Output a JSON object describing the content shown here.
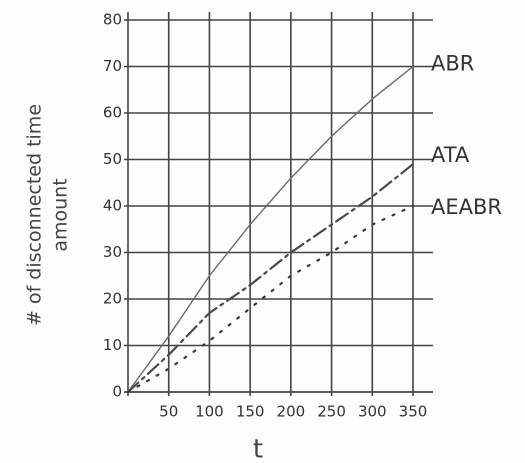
{
  "chart_data": {
    "type": "line",
    "y_label_lines": [
      "# of disconnected time",
      "amount"
    ],
    "x_label": "t",
    "x": [
      0,
      50,
      100,
      150,
      200,
      250,
      300,
      350
    ],
    "series": [
      {
        "name": "ABR",
        "color": "#6a6a6a",
        "linestyle": "solid",
        "values": [
          0,
          12,
          25,
          36,
          46,
          55,
          63,
          70
        ]
      },
      {
        "name": "ATA",
        "color": "#4a4a4a",
        "linestyle": "dashdot",
        "values": [
          0,
          8,
          17,
          23,
          30,
          36,
          42,
          49
        ]
      },
      {
        "name": "AEABR",
        "color": "#3a3a3a",
        "linestyle": "dotted",
        "values": [
          0,
          5,
          11,
          18,
          25,
          30,
          36,
          40
        ]
      }
    ],
    "xlim": [
      0,
      350
    ],
    "xticks": [
      50,
      100,
      150,
      200,
      250,
      300,
      350
    ],
    "ylim": [
      0,
      80
    ],
    "yticks": [
      0,
      10,
      20,
      30,
      40,
      50,
      60,
      70,
      80
    ],
    "grid": true
  }
}
